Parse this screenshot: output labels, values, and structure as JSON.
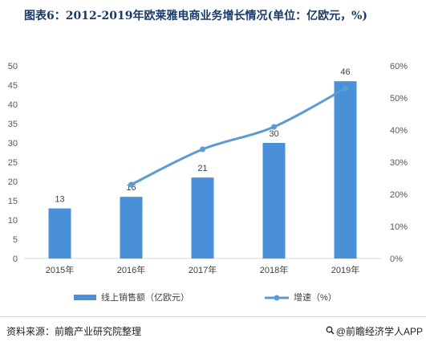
{
  "title": "图表6：2012-2019年欧莱雅电商业务增长情况(单位：亿欧元，%)",
  "footer": {
    "source": "资料来源：前瞻产业研究院整理",
    "brand_icon": "magnifier-icon",
    "brand": "@前瞻经济学人APP"
  },
  "colors": {
    "bar": "#4a90d9",
    "line": "#5b9bd5",
    "axis": "#d9d9d9",
    "title": "#1a3a6b"
  },
  "chart_data": {
    "type": "bar",
    "categories": [
      "2015年",
      "2016年",
      "2017年",
      "2018年",
      "2019年"
    ],
    "series": [
      {
        "name": "线上销售额（亿欧元）",
        "type": "bar",
        "axis": "left",
        "values": [
          13,
          16,
          21,
          30,
          46
        ]
      },
      {
        "name": "增速（%）",
        "type": "line",
        "axis": "right",
        "values": [
          null,
          23,
          34,
          41,
          53
        ]
      }
    ],
    "data_labels": [
      "13",
      "16",
      "21",
      "30",
      "46"
    ],
    "y_left": {
      "min": 0,
      "max": 50,
      "step": 5,
      "ticks": [
        "0",
        "5",
        "10",
        "15",
        "20",
        "25",
        "30",
        "35",
        "40",
        "45",
        "50"
      ]
    },
    "y_right": {
      "min": 0,
      "max": 60,
      "step": 10,
      "ticks": [
        "0%",
        "10%",
        "20%",
        "30%",
        "40%",
        "50%",
        "60%"
      ]
    },
    "grid": false,
    "legend": {
      "position": "bottom",
      "entries": [
        "线上销售额（亿欧元）",
        "增速（%）"
      ]
    }
  }
}
